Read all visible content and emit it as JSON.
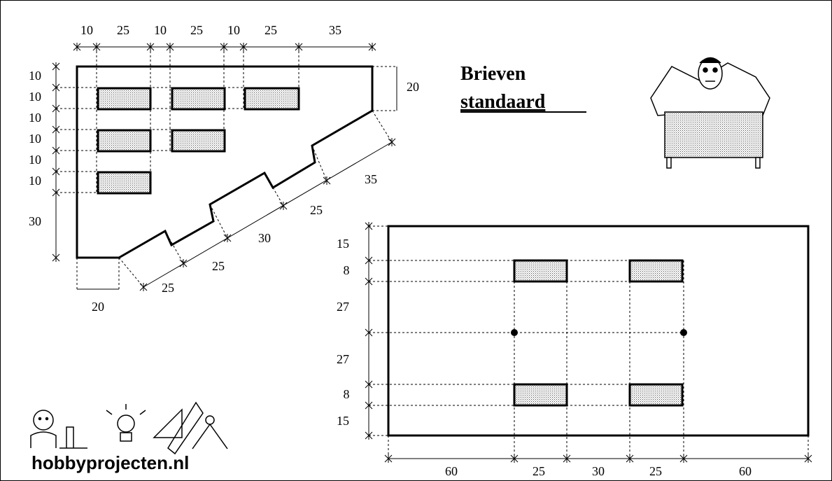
{
  "title": {
    "line1": "Brieven",
    "line2": "standaard"
  },
  "brand": "hobbyprojecten.nl",
  "left_diagram": {
    "top": [
      10,
      25,
      10,
      25,
      10,
      25,
      35
    ],
    "left": [
      10,
      10,
      10,
      10,
      10,
      10,
      30
    ],
    "right": [
      20
    ],
    "bottom": [
      20
    ],
    "diagonal": [
      25,
      25,
      30,
      25,
      35
    ]
  },
  "right_diagram": {
    "left": [
      15,
      8,
      27,
      27,
      8,
      15
    ],
    "bottom": [
      60,
      25,
      30,
      25,
      60
    ]
  }
}
